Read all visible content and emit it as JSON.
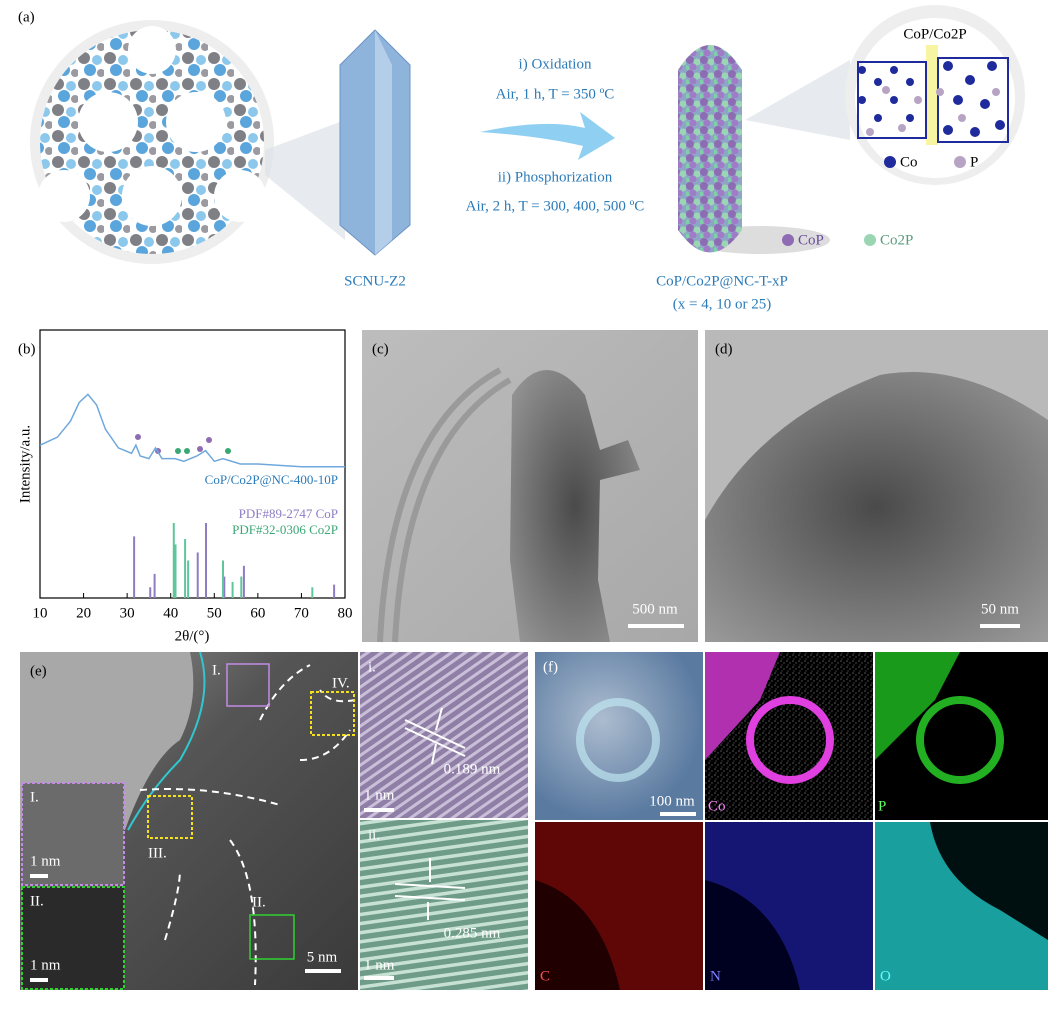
{
  "panel_a": {
    "label": "(a)",
    "step1_title": "i) Oxidation",
    "step1_conditions": "Air, 1 h, T = 350 ºC",
    "step2_title": "ii) Phosphorization",
    "step2_conditions": "Air, 2 h, T = 300, 400, 500 ºC",
    "precursor": "SCNU-Z2",
    "product": "CoP/Co2P@NC-T-xP",
    "product_note": "(x = 4, 10 or 25)",
    "inset_title": "CoP/Co2P",
    "inset_legend": [
      "Co",
      "P"
    ],
    "legend": [
      "CoP",
      "Co2P"
    ]
  },
  "panel_b": {
    "label": "(b)",
    "ylabel": "Intensity/a.u.",
    "xlabel": "2θ/(°)",
    "xlim": [
      10,
      80
    ],
    "ylim": [
      0,
      100
    ],
    "xticks": [
      10,
      20,
      30,
      40,
      50,
      60,
      70,
      80
    ],
    "sample": {
      "name": "CoP/Co2P@NC-400-10P",
      "color": "#6fa8dc",
      "x": [
        10,
        14,
        17,
        19,
        21,
        23,
        25,
        28,
        31,
        32,
        33,
        35,
        36.5,
        38,
        41,
        43,
        46,
        48,
        50,
        52,
        56,
        60,
        70,
        80
      ],
      "y": [
        57,
        60,
        66,
        73,
        76,
        72,
        63,
        56,
        54,
        57,
        53,
        52,
        56,
        52,
        52,
        51,
        53,
        55,
        51,
        52,
        50,
        50,
        49,
        49
      ]
    },
    "references": [
      {
        "name": "PDF#89-2747 CoP",
        "color": "#8e7cc3",
        "x": [
          31.6,
          35.3,
          36.3,
          46.2,
          48.1,
          52.3,
          56.8,
          77.5
        ],
        "y": [
          23,
          4,
          9,
          17,
          28,
          8,
          12,
          5
        ]
      },
      {
        "name": "PDF#32-0306 Co2P",
        "color": "#5fc59a",
        "x": [
          40.7,
          41.1,
          43.3,
          44.0,
          52.0,
          54.2,
          56.2,
          72.5
        ],
        "y": [
          28,
          20,
          22,
          14,
          14,
          6,
          8,
          4
        ]
      }
    ]
  },
  "panel_c": {
    "label": "(c)",
    "scale": "500 nm"
  },
  "panel_d": {
    "label": "(d)",
    "scale": "50 nm"
  },
  "panel_e": {
    "label": "(e)",
    "regions": [
      "I.",
      "II.",
      "III.",
      "IV."
    ],
    "scale": "5 nm",
    "inset_1": {
      "label": "I.",
      "scale": "1 nm"
    },
    "inset_2": {
      "label": "II.",
      "scale": "1 nm"
    },
    "fft_1": {
      "label": "i.",
      "spacing": "0.189 nm",
      "scale": "1 nm"
    },
    "fft_2": {
      "label": "ii.",
      "spacing": "0.285 nm",
      "scale": "1 nm"
    }
  },
  "panel_f": {
    "label": "(f)",
    "scale": "100 nm",
    "maps": [
      "Co",
      "P",
      "C",
      "N",
      "O"
    ]
  }
}
